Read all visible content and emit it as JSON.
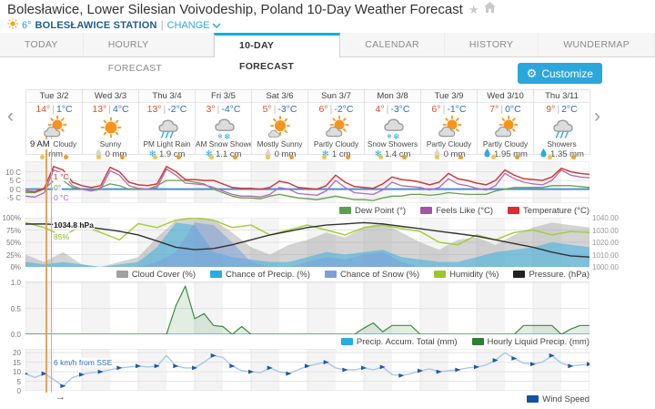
{
  "header": {
    "title": "Bolesławice, Lower Silesian Voivodeship, Poland 10-Day Weather Forecast",
    "favorite_icon": "star-icon",
    "home_icon": "home-icon"
  },
  "station_bar": {
    "sun_icon": "sun-icon",
    "temp": "6°",
    "station_name": "BOLESŁAWICE STATION",
    "separator": "|",
    "change_label": "CHANGE",
    "chevron_icon": "chevron-down-icon"
  },
  "tabs": [
    {
      "label": "TODAY",
      "active": false
    },
    {
      "label": "HOURLY FORECAST",
      "active": false
    },
    {
      "label": "10-DAY FORECAST",
      "active": true
    },
    {
      "label": "CALENDAR",
      "active": false
    },
    {
      "label": "HISTORY",
      "active": false
    },
    {
      "label": "WUNDERMAP",
      "active": false
    }
  ],
  "toolbar": {
    "customize_label": "Customize",
    "gear_icon": "⚙"
  },
  "strip": {
    "prev_arrow": "‹",
    "next_arrow": "›"
  },
  "strings": {
    "temp_sep": "|"
  },
  "time_marker": {
    "label": "9 AM",
    "axis_arrow": "→"
  },
  "colors": {
    "accent_tab": "#00b1e2",
    "link_blue": "#29abe2",
    "customize_bg": "#2ba7dc",
    "high_temp": "#e44d26",
    "low_temp": "#2a6ebb",
    "current_line": "#e2953f",
    "precip_blue": "#29abe2"
  },
  "days": [
    {
      "date": "Tue 3/2",
      "high": "14°",
      "low": "1°C",
      "icon": "partly-cloudy",
      "condition": "Partly Cloudy",
      "precip": {
        "icon": "none",
        "value": "mm"
      }
    },
    {
      "date": "Wed 3/3",
      "high": "13°",
      "low": "4°C",
      "icon": "sunny",
      "condition": "Sunny",
      "precip": {
        "icon": "droplet-gray",
        "value": "0 mm"
      }
    },
    {
      "date": "Thu 3/4",
      "high": "13°",
      "low": "-2°C",
      "icon": "rain",
      "condition": "PM Light Rain",
      "precip": {
        "icon": "snowflake",
        "value": "1.9 cm"
      }
    },
    {
      "date": "Fri 3/5",
      "high": "3°",
      "low": "-4°C",
      "icon": "snow",
      "condition": "AM Snow Showers",
      "precip": {
        "icon": "snowflake",
        "value": "1.1 cm"
      }
    },
    {
      "date": "Sat 3/6",
      "high": "5°",
      "low": "-3°C",
      "icon": "mostly-sunny",
      "condition": "Mostly Sunny",
      "precip": {
        "icon": "droplet-gray",
        "value": "0 mm"
      }
    },
    {
      "date": "Sun 3/7",
      "high": "6°",
      "low": "-2°C",
      "icon": "partly-cloudy",
      "condition": "Partly Cloudy",
      "precip": {
        "icon": "snowflake",
        "value": "1 cm"
      }
    },
    {
      "date": "Mon 3/8",
      "high": "4°",
      "low": "-3°C",
      "icon": "snow",
      "condition": "Snow Showers",
      "precip": {
        "icon": "snowflake",
        "value": "1.4 cm"
      }
    },
    {
      "date": "Tue 3/9",
      "high": "6°",
      "low": "-1°C",
      "icon": "partly-cloudy",
      "condition": "Partly Cloudy",
      "precip": {
        "icon": "droplet-gray",
        "value": "0 mm"
      }
    },
    {
      "date": "Wed 3/10",
      "high": "7°",
      "low": "0°C",
      "icon": "partly-cloudy",
      "condition": "Partly Cloudy",
      "precip": {
        "icon": "droplet-blue",
        "value": "1.95 mm"
      }
    },
    {
      "date": "Thu 3/11",
      "high": "9°",
      "low": "2°C",
      "icon": "showers",
      "condition": "Showers",
      "precip": {
        "icon": "droplet-blue",
        "value": "1.35 mm"
      }
    }
  ],
  "chart_data": [
    {
      "type": "line",
      "name": "temperature-chart",
      "step_hours": 4,
      "ylim": [
        -8,
        16
      ],
      "yticks": [
        {
          "v": 10,
          "label": "10 C"
        },
        {
          "v": 5,
          "label": "5 C"
        },
        {
          "v": 0,
          "label": "0 C"
        },
        {
          "v": -5,
          "label": "-5 C"
        }
      ],
      "freezing_line": {
        "value": 0,
        "color": "#4a8fd3"
      },
      "series": [
        {
          "name": "Dew Point (°)",
          "color": "#69a050",
          "width": 1.3,
          "values": [
            -2,
            -2,
            0,
            5,
            5,
            1,
            0,
            -1,
            1,
            3,
            2,
            0,
            0,
            0,
            2,
            5,
            5,
            5,
            4,
            3,
            0,
            -2,
            -4,
            -5,
            -5,
            -5.5,
            -4,
            -3,
            -4,
            -5,
            -5.5,
            -6,
            -5,
            -4,
            -5,
            -6,
            -6,
            -6.5,
            -5,
            -4,
            -4,
            -3,
            -3,
            -3.5,
            -3,
            -2,
            -2.5,
            -3,
            -3,
            -3,
            -1,
            0,
            1,
            1,
            1,
            1,
            2,
            2,
            2,
            1.5,
            1
          ]
        },
        {
          "name": "Feels Like (°C)",
          "color": "#b36bb3",
          "width": 1.3,
          "values": [
            -4,
            -4.5,
            -2,
            11,
            9,
            2,
            0,
            -1,
            0,
            10.5,
            8,
            2,
            0.5,
            0,
            1,
            11.5,
            8,
            3.5,
            3,
            2.5,
            1,
            -1,
            -3,
            -4,
            -4,
            -4.5,
            -3,
            1,
            0,
            -2.5,
            -3,
            -3.5,
            -1,
            5,
            1,
            -2,
            -2.5,
            -3,
            -0.5,
            4,
            2,
            1.5,
            1,
            -0.5,
            1,
            6,
            3,
            2,
            0.5,
            -0.5,
            2,
            9,
            6,
            4,
            3,
            2.5,
            5,
            11,
            8,
            7,
            6.5
          ]
        },
        {
          "name": "Temperature (°C)",
          "color": "#d23b3b",
          "width": 1.5,
          "values": [
            -1,
            -1.5,
            0.5,
            13,
            11,
            4,
            2,
            1,
            2,
            12.5,
            10,
            4,
            2.5,
            2,
            3,
            13,
            10,
            5.5,
            5.5,
            5,
            5,
            3,
            1,
            0.5,
            0.5,
            0,
            1,
            4.5,
            3.5,
            1,
            0.5,
            0,
            2,
            8,
            4,
            1.5,
            1,
            0.5,
            3,
            7,
            5.5,
            5,
            4,
            2.5,
            4,
            9,
            6,
            5,
            3.5,
            2.5,
            5,
            11,
            8,
            6,
            5.5,
            5,
            7,
            12,
            10,
            9,
            8.5
          ]
        }
      ],
      "annotations": [
        {
          "text": "1 °C",
          "color": "#d23b3b"
        },
        {
          "text": "0°",
          "color": "#69a050"
        },
        {
          "text": "0 °C",
          "color": "#b36bb3"
        }
      ],
      "legend": [
        {
          "label": "Dew Point (°)",
          "color": "#5b9e4d"
        },
        {
          "label": "Feels Like (°C)",
          "color": "#a256a8"
        },
        {
          "label": "Temperature (°C)",
          "color": "#dd2c2c"
        }
      ]
    },
    {
      "type": "area+line",
      "name": "conditions-chart",
      "step_hours": 8,
      "ylim": [
        0,
        100
      ],
      "yticks": [
        {
          "v": 100,
          "label": "100%"
        },
        {
          "v": 75,
          "label": "75%"
        },
        {
          "v": 50,
          "label": "50%"
        },
        {
          "v": 25,
          "label": "25%"
        },
        {
          "v": 0,
          "label": "0%"
        }
      ],
      "right_axis": {
        "ylim": [
          1000,
          1040
        ],
        "ticks": [
          {
            "v": 1040,
            "label": "1040.00"
          },
          {
            "v": 1030,
            "label": "1030.00"
          },
          {
            "v": 1020,
            "label": "1020.00"
          },
          {
            "v": 1010,
            "label": "1010.00"
          },
          {
            "v": 1000,
            "label": "1000.00"
          }
        ]
      },
      "areas": [
        {
          "name": "Cloud Cover (%)",
          "color": "#a0a0a0",
          "opacity": 0.45,
          "values": [
            25,
            10,
            30,
            5,
            0,
            10,
            20,
            60,
            95,
            100,
            95,
            70,
            40,
            25,
            45,
            55,
            70,
            60,
            80,
            90,
            70,
            50,
            35,
            55,
            60,
            45,
            65,
            80,
            90,
            85,
            80
          ]
        },
        {
          "name": "Chance of Precip. (%)",
          "color": "#29abe2",
          "opacity": 0.5,
          "values": [
            10,
            5,
            10,
            5,
            0,
            5,
            10,
            40,
            90,
            85,
            30,
            20,
            15,
            10,
            10,
            20,
            30,
            25,
            30,
            35,
            20,
            15,
            10,
            10,
            20,
            30,
            35,
            40,
            50,
            45,
            40
          ]
        },
        {
          "name": "Chance of Snow (%)",
          "color": "#7d9ed9",
          "opacity": 0.55,
          "values": [
            0,
            0,
            0,
            0,
            0,
            0,
            0,
            10,
            30,
            90,
            85,
            50,
            10,
            0,
            0,
            10,
            20,
            15,
            25,
            30,
            10,
            0,
            0,
            0,
            0,
            0,
            0,
            0,
            0,
            0,
            0
          ]
        }
      ],
      "series": [
        {
          "name": "Humidity (%)",
          "color": "#a6ce39",
          "width": 1.5,
          "values": [
            90,
            80,
            62,
            85,
            70,
            55,
            88,
            80,
            95,
            100,
            95,
            80,
            85,
            65,
            75,
            85,
            75,
            65,
            80,
            85,
            78,
            72,
            50,
            45,
            65,
            55,
            70,
            75,
            65,
            72,
            70
          ]
        },
        {
          "name": "Pressure. (hPa)",
          "color": "#333333",
          "width": 1.4,
          "axis": "right",
          "values": [
            1034.8,
            1035,
            1034,
            1033,
            1031,
            1029,
            1026,
            1021,
            1016,
            1014,
            1015,
            1018,
            1022,
            1026,
            1029,
            1032,
            1034,
            1035,
            1036,
            1035,
            1033,
            1031,
            1029,
            1027,
            1025,
            1022,
            1019,
            1016,
            1012,
            1009,
            1008
          ]
        }
      ],
      "annotations": [
        {
          "text": "1034.8 hPa",
          "color": "#222222"
        },
        {
          "text": "85%",
          "color": "#8bb82d"
        }
      ],
      "legend": [
        {
          "label": "Cloud Cover (%)",
          "color": "#a0a0a0"
        },
        {
          "label": "Chance of Precip. (%)",
          "color": "#29abe2"
        },
        {
          "label": "Chance of Snow (%)",
          "color": "#7d9ed9"
        },
        {
          "label": "Humidity (%)",
          "color": "#9dc62d"
        },
        {
          "label": "Pressure. (hPa)",
          "color": "#222222"
        }
      ]
    },
    {
      "type": "area+line",
      "name": "precip-chart",
      "step_hours": 4,
      "ylim": [
        0,
        1.02
      ],
      "yticks": [
        {
          "v": 1.0,
          "label": "1.0"
        },
        {
          "v": 0.5,
          "label": "0.5"
        },
        {
          "v": 0,
          "label": "0.0"
        }
      ],
      "series": [
        {
          "name": "Precip. Accum. Total (mm)",
          "color": "#29abe2",
          "width": 1.2,
          "values": [
            0,
            0,
            0,
            0,
            0,
            0,
            0,
            0,
            0,
            0,
            0,
            0,
            0,
            0,
            0,
            0,
            0,
            0,
            0,
            0,
            0,
            0,
            0,
            0,
            0,
            0,
            0,
            0,
            0,
            0,
            0,
            0,
            0,
            0,
            0,
            0,
            0,
            0,
            0,
            0,
            0,
            0,
            0,
            0,
            0,
            0,
            0,
            0,
            0,
            0,
            0,
            0,
            0,
            0,
            0,
            0,
            0,
            0,
            0,
            0,
            0
          ]
        },
        {
          "name": "Hourly Liquid Precip. (mm)",
          "color": "#3b8c3f",
          "width": 1.2,
          "fill": true,
          "values": [
            0,
            0,
            0,
            0,
            0,
            0,
            0,
            0,
            0,
            0,
            0,
            0,
            0,
            0,
            0,
            0,
            0.55,
            0.93,
            0.3,
            0.4,
            0.17,
            0.15,
            0,
            0.15,
            0,
            0,
            0,
            0,
            0,
            0,
            0,
            0,
            0,
            0,
            0,
            0,
            0.12,
            0.22,
            0.05,
            0.17,
            0.17,
            0.17,
            0,
            0,
            0,
            0,
            0,
            0,
            0,
            0,
            0,
            0,
            0,
            0.17,
            0.17,
            0.17,
            0.17,
            0,
            0.1,
            0.17,
            0.17
          ]
        }
      ],
      "annotations": [],
      "legend": [
        {
          "label": "Precip. Accum. Total (mm)",
          "color": "#29abe2"
        },
        {
          "label": "Hourly Liquid Precip. (mm)",
          "color": "#2e7d32"
        }
      ]
    },
    {
      "type": "line",
      "name": "wind-chart",
      "step_hours": 4,
      "ylim": [
        0,
        22
      ],
      "yticks": [
        {
          "v": 20,
          "label": "20"
        },
        {
          "v": 15,
          "label": "15"
        },
        {
          "v": 10,
          "label": "10"
        },
        {
          "v": 5,
          "label": "5"
        },
        {
          "v": 0,
          "label": "0"
        }
      ],
      "series": [
        {
          "name": "Wind Speed",
          "color": "#a8c8e8",
          "width": 1.4,
          "markers": true,
          "marker_color": "#1a57b0",
          "values": [
            9,
            7,
            9,
            6,
            2.5,
            7,
            8.5,
            9.5,
            10,
            11,
            12,
            12.5,
            13,
            12.5,
            13,
            18.5,
            13,
            12,
            12,
            15,
            18.5,
            17.5,
            13,
            10.5,
            10,
            9.5,
            12,
            10,
            9,
            11,
            13,
            14,
            15,
            12,
            11,
            11,
            12,
            11,
            12.5,
            8.5,
            8,
            9,
            10.5,
            11.5,
            10,
            10.5,
            11,
            12,
            12.5,
            13.5,
            16,
            20,
            17,
            14.5,
            14,
            15,
            18.5,
            14.5,
            13,
            13.5,
            14
          ]
        }
      ],
      "annotations": [
        {
          "text": "6 km/h from SSE",
          "color": "#2a6fc0"
        }
      ],
      "legend": [
        {
          "label": "Wind Speed",
          "color": "#1353a3"
        }
      ]
    }
  ]
}
